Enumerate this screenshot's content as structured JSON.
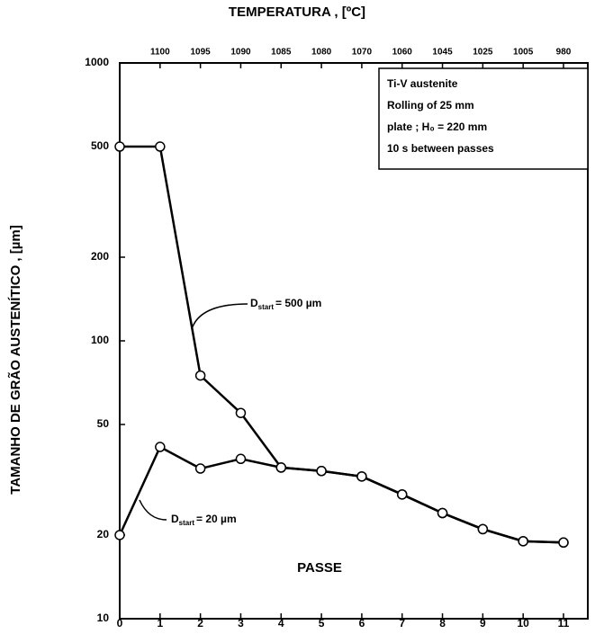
{
  "chart_data": {
    "type": "line",
    "title": "TEMPERATURA , [ºC]",
    "y_label": "TAMANHO DE GRÃO  AUSTENÍTICO , [µm]",
    "x_label": "PASSE",
    "log_y": true,
    "x": [
      0,
      1,
      2,
      3,
      4,
      5,
      6,
      7,
      8,
      9,
      10,
      11
    ],
    "series": [
      {
        "name": "500",
        "color": "#000000",
        "values": [
          500,
          500,
          75,
          55,
          35,
          34,
          32.5,
          28,
          24,
          21,
          19,
          18.8
        ]
      },
      {
        "name": "20",
        "color": "#000000",
        "values": [
          20,
          41.5,
          34.7,
          37.6,
          35,
          34,
          32.5,
          28,
          24,
          21,
          19,
          18.8
        ]
      }
    ],
    "xlim": [
      0,
      11
    ],
    "xticks": [
      0,
      1,
      2,
      3,
      4,
      5,
      6,
      7,
      8,
      9,
      10,
      11
    ],
    "ylim": [
      10,
      1000
    ],
    "yticks": [
      10,
      20,
      50,
      100,
      200,
      500,
      1000
    ],
    "top_axis": {
      "x": [
        1,
        2,
        3,
        4,
        5,
        6,
        7,
        8,
        9,
        10,
        11
      ],
      "labels": [
        1100,
        1095,
        1090,
        1085,
        1080,
        1070,
        1060,
        1045,
        1025,
        1005,
        980
      ]
    },
    "legend_box": [
      "Ti-V austenite",
      "Rolling of 25 mm",
      "plate ; H₀ = 220 mm",
      "10 s between passes"
    ],
    "annotations": [
      {
        "text": "D",
        "sub": "start",
        "rest": "= 500 µm"
      },
      {
        "text": "D",
        "sub": "start",
        "rest": "= 20 µm"
      }
    ]
  }
}
